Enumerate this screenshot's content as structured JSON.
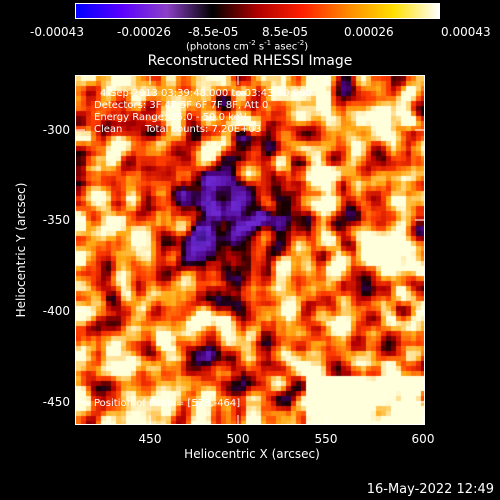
{
  "colorbar": {
    "ticks": [
      "-0.00043",
      "-0.00026",
      "-8.5e-05",
      "8.5e-05",
      "0.00026",
      "0.00043"
    ],
    "units_main": "(photons cm",
    "units_sup1": "-2",
    "units_mid1": " s",
    "units_sup2": "-1",
    "units_mid2": " asec",
    "units_sup3": "-2",
    "units_end": ")",
    "colors": [
      "#0000ff",
      "#5a00ff",
      "#8c40c8",
      "#000000",
      "#b00000",
      "#ff2000",
      "#ff8a00",
      "#ffe000",
      "#ffffff"
    ]
  },
  "plot": {
    "title": "Reconstructed RHESSI Image",
    "time_range": "4-Sep-2013 03:39:48.000 to 03:43:40.000",
    "detectors": "Detectors: 3F 4F 5F 6F 7F 8F, Att 0",
    "energy_range": "Energy Range: 25.0 - 50.0 keV",
    "algorithm": "Clean",
    "total_counts": "Total counts: 7.20E+03",
    "peak_position": "Position of Peak = [573,-464]",
    "xlabel": "Heliocentric X (arcsec)",
    "ylabel": "Heliocentric Y (arcsec)",
    "xticks": [
      "450",
      "500",
      "550",
      "600"
    ],
    "yticks": [
      "-300",
      "-350",
      "-400",
      "-450"
    ]
  },
  "timestamp": "16-May-2022 12:49"
}
